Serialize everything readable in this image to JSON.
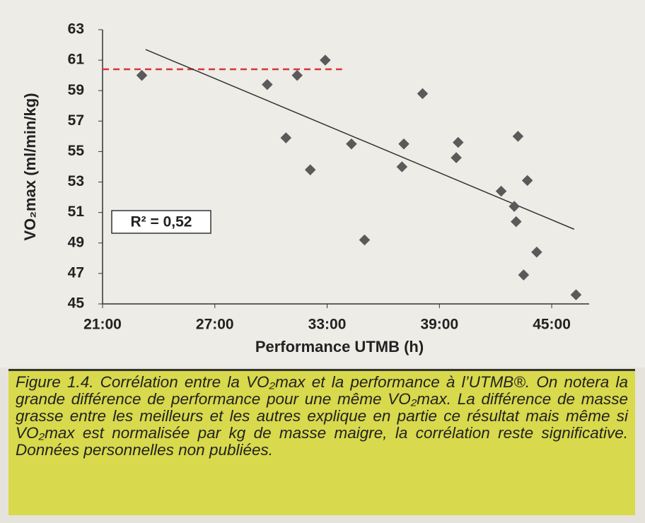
{
  "chart_data": {
    "type": "scatter",
    "x_label": "Performance UTMB (h)",
    "y_label": "VO₂max (ml/min/kg)",
    "xlim": [
      21,
      47
    ],
    "ylim": [
      45,
      63
    ],
    "xticks": [
      {
        "value": 21,
        "label": "21:00"
      },
      {
        "value": 27,
        "label": "27:00"
      },
      {
        "value": 33,
        "label": "33:00"
      },
      {
        "value": 39,
        "label": "39:00"
      },
      {
        "value": 45,
        "label": "45:00"
      }
    ],
    "yticks": [
      45,
      47,
      49,
      51,
      53,
      55,
      57,
      59,
      61,
      63
    ],
    "x": [
      23.1,
      29.8,
      31.4,
      32.9,
      30.8,
      32.1,
      34.3,
      35.0,
      37.1,
      37.0,
      38.1,
      40.0,
      39.9,
      42.3,
      43.2,
      43.0,
      43.1,
      43.7,
      44.2,
      43.5,
      46.3
    ],
    "values": [
      60.0,
      59.4,
      60.0,
      61.0,
      55.9,
      53.8,
      55.5,
      49.2,
      55.5,
      54.0,
      58.8,
      55.6,
      54.6,
      52.4,
      56.0,
      51.4,
      50.4,
      53.1,
      48.4,
      46.9,
      45.6
    ],
    "color": "#5a5a5a",
    "trendline": {
      "x": [
        23.3,
        46.2
      ],
      "y": [
        61.7,
        49.9
      ],
      "color": "#333333"
    },
    "reference_line": {
      "x": [
        21,
        33.8
      ],
      "y": 60.4,
      "color": "#d9343a"
    },
    "annotation": "R² = 0,52",
    "caption": "Figure 1.4. Corrélation entre la VO₂max et la performance à l’UTMB®. On notera la grande différence de performance pour une même VO₂max. La différence de masse grasse entre les meilleurs et les autres explique en partie ce résultat mais même si VO₂max est normalisée par kg de masse maigre, la corrélation reste significative. Données personnelles non publiées."
  }
}
